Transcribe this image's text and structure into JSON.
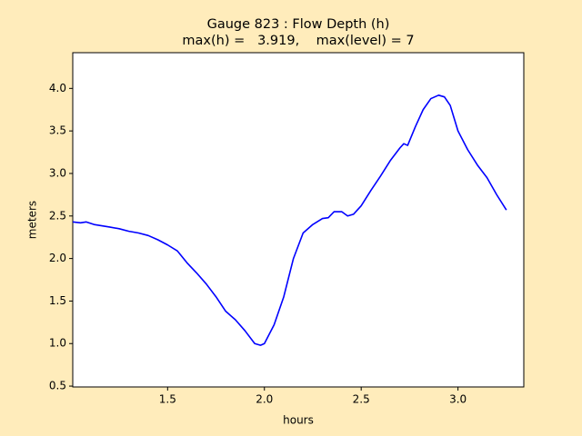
{
  "chart_data": {
    "type": "line",
    "title": "Gauge 823 : Flow Depth (h)",
    "subtitle": "max(h) =   3.919,    max(level) = 7",
    "x_label": "hours",
    "y_label": "meters",
    "x": [
      1.01,
      1.05,
      1.08,
      1.12,
      1.2,
      1.25,
      1.3,
      1.35,
      1.4,
      1.45,
      1.5,
      1.55,
      1.6,
      1.65,
      1.7,
      1.75,
      1.8,
      1.85,
      1.9,
      1.95,
      1.98,
      2.0,
      2.05,
      2.1,
      2.15,
      2.2,
      2.25,
      2.3,
      2.33,
      2.36,
      2.4,
      2.43,
      2.46,
      2.5,
      2.55,
      2.6,
      2.65,
      2.7,
      2.72,
      2.74,
      2.78,
      2.82,
      2.86,
      2.9,
      2.93,
      2.96,
      3.0,
      3.05,
      3.1,
      3.15,
      3.2,
      3.25
    ],
    "series": [
      {
        "name": "h",
        "color": "#0000ff",
        "values": [
          2.43,
          2.42,
          2.43,
          2.4,
          2.37,
          2.35,
          2.32,
          2.3,
          2.27,
          2.22,
          2.16,
          2.09,
          1.95,
          1.83,
          1.7,
          1.55,
          1.38,
          1.28,
          1.15,
          1.0,
          0.98,
          1.0,
          1.22,
          1.55,
          2.0,
          2.3,
          2.4,
          2.47,
          2.48,
          2.55,
          2.55,
          2.5,
          2.52,
          2.62,
          2.8,
          2.97,
          3.15,
          3.3,
          3.35,
          3.33,
          3.55,
          3.75,
          3.88,
          3.92,
          3.9,
          3.8,
          3.5,
          3.28,
          3.1,
          2.95,
          2.75,
          2.57
        ]
      }
    ],
    "xlim": [
      1.01,
      3.34
    ],
    "ylim": [
      0.49,
      4.42
    ],
    "xticks": [
      1.5,
      {
        "value": 2.0,
        "label": "2.0"
      },
      2.5,
      {
        "value": 3.0,
        "label": "3.0"
      }
    ],
    "yticks": [
      0.5,
      {
        "value": 1.0,
        "label": "1.0"
      },
      1.5,
      {
        "value": 2.0,
        "label": "2.0"
      },
      2.5,
      {
        "value": 3.0,
        "label": "3.0"
      },
      3.5,
      {
        "value": 4.0,
        "label": "4.0"
      }
    ],
    "grid": false
  }
}
